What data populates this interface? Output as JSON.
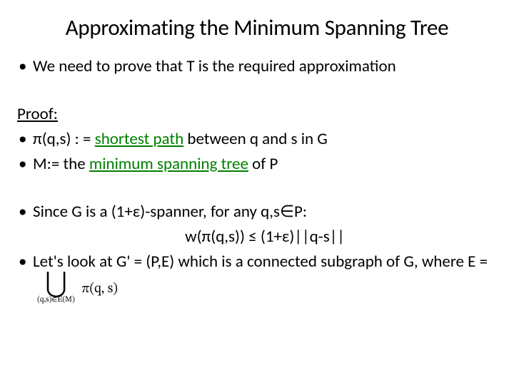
{
  "colors": {
    "text": "#000000",
    "accent_green": "#008000",
    "background": "#ffffff"
  },
  "typography": {
    "title_fontsize": 31,
    "body_fontsize": 23,
    "font_family": "Calibri"
  },
  "title": "Approximating the Minimum Spanning Tree",
  "bullets": {
    "b1": "We need to prove that T is the required approximation",
    "proof_label": "Proof:",
    "b2_pre": "π(q,s) : = ",
    "b2_green": "shortest path",
    "b2_post": " between q and s in G",
    "b3_pre": "M:= the ",
    "b3_green": "minimum spanning tree",
    "b3_post": " of P",
    "b4": "Since G is a (1+ε)-spanner, for any q,s∈P:",
    "formula": "w(π(q,s)) ≤ (1+ε)||q-s||",
    "b5": "Let's look at G' = (P,E) which is a connected subgraph of G, where E =",
    "union_sub": "(q,s)∈E(M)",
    "union_rhs": "π(q, s)"
  }
}
